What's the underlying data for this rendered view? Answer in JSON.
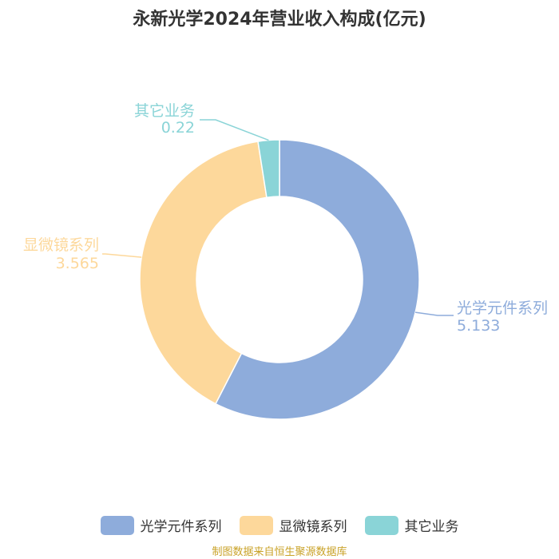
{
  "chart_data": {
    "type": "pie",
    "title": "永新光学2024年营业收入构成(亿元)",
    "donut": true,
    "categories": [
      "光学元件系列",
      "显微镜系列",
      "其它业务"
    ],
    "values": [
      5.133,
      3.565,
      0.22
    ],
    "value_labels": [
      "5.133",
      "3.565",
      "0.22"
    ],
    "colors": [
      "#8eacdb",
      "#fdd89b",
      "#8ad4d7"
    ],
    "legend_position": "bottom"
  },
  "source_note": "制图数据来自恒生聚源数据库"
}
